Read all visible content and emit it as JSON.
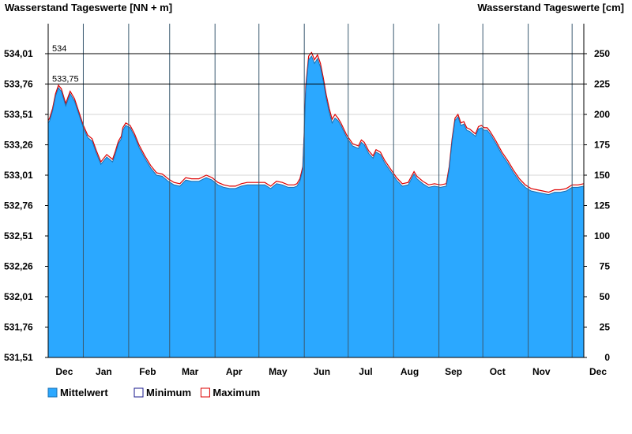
{
  "chart_data": {
    "type": "area",
    "title_left": "Wasserstand Tageswerte [NN + m]",
    "title_right": "Wasserstand Tageswerte [cm]",
    "left_axis": {
      "ticks": [
        "534,01",
        "533,76",
        "533,51",
        "533,26",
        "533,01",
        "532,76",
        "532,51",
        "532,26",
        "532,01",
        "531,76",
        "531,51"
      ],
      "range": [
        531.51,
        534.01
      ]
    },
    "right_axis": {
      "ticks": [
        "250",
        "225",
        "200",
        "175",
        "150",
        "125",
        "100",
        "75",
        "50",
        "25",
        "0"
      ],
      "range": [
        0,
        250
      ]
    },
    "x_axis": {
      "range": [
        0,
        366
      ],
      "month_labels": [
        {
          "label": "Dec",
          "day": 11
        },
        {
          "label": "Jan",
          "day": 38
        },
        {
          "label": "Feb",
          "day": 68
        },
        {
          "label": "Mar",
          "day": 97
        },
        {
          "label": "Apr",
          "day": 127
        },
        {
          "label": "May",
          "day": 157
        },
        {
          "label": "Jun",
          "day": 187
        },
        {
          "label": "Jul",
          "day": 217
        },
        {
          "label": "Aug",
          "day": 247
        },
        {
          "label": "Sep",
          "day": 277
        },
        {
          "label": "Oct",
          "day": 307
        },
        {
          "label": "Nov",
          "day": 337
        },
        {
          "label": "Dec",
          "day": 366
        }
      ],
      "month_boundaries": [
        24,
        55,
        83,
        114,
        144,
        175,
        205,
        236,
        267,
        297,
        328,
        358
      ]
    },
    "reference_lines": [
      {
        "label": "534",
        "value_cm": 250
      },
      {
        "label": "533,75",
        "value_cm": 225
      }
    ],
    "grid": true,
    "legend_position": "bottom-left",
    "legend": [
      {
        "name": "Mittelwert",
        "color": "#2ba8ff"
      },
      {
        "name": "Minimum",
        "color": "#1a1a8c"
      },
      {
        "name": "Maximum",
        "color": "#dd0000"
      }
    ],
    "series": [
      {
        "name": "Mittelwert",
        "unit": "cm",
        "x": [
          0,
          1,
          3,
          5,
          7,
          9,
          10,
          12,
          15,
          18,
          21,
          24,
          27,
          30,
          33,
          36,
          40,
          44,
          46,
          48,
          50,
          51,
          53,
          56,
          59,
          62,
          66,
          70,
          74,
          78,
          82,
          86,
          90,
          94,
          98,
          103,
          108,
          112,
          116,
          120,
          124,
          128,
          132,
          136,
          140,
          144,
          148,
          152,
          156,
          160,
          164,
          168,
          170,
          172,
          174,
          175,
          176,
          178,
          180,
          182,
          184,
          186,
          188,
          190,
          192,
          194,
          196,
          198,
          200,
          204,
          208,
          212,
          214,
          216,
          219,
          222,
          224,
          227,
          230,
          234,
          238,
          242,
          246,
          250,
          252,
          256,
          260,
          264,
          268,
          272,
          274,
          276,
          278,
          280,
          282,
          284,
          286,
          288,
          292,
          294,
          296,
          298,
          300,
          302,
          306,
          310,
          314,
          318,
          322,
          326,
          330,
          334,
          338,
          342,
          346,
          350,
          354,
          358,
          362,
          366
        ],
        "y": [
          193,
          195,
          203,
          215,
          222,
          219,
          215,
          207,
          217,
          211,
          200,
          189,
          181,
          178,
          168,
          159,
          165,
          161,
          168,
          176,
          180,
          187,
          191,
          189,
          182,
          173,
          164,
          156,
          150,
          149,
          145,
          142,
          141,
          146,
          145,
          145,
          148,
          146,
          142,
          140,
          139,
          139,
          141,
          142,
          142,
          142,
          142,
          139,
          143,
          142,
          140,
          140,
          141,
          145,
          155,
          185,
          220,
          245,
          248,
          242,
          246,
          239,
          227,
          213,
          202,
          193,
          197,
          195,
          191,
          181,
          174,
          172,
          177,
          175,
          168,
          164,
          169,
          167,
          160,
          153,
          146,
          141,
          142,
          151,
          147,
          143,
          140,
          141,
          140,
          141,
          155,
          178,
          195,
          198,
          191,
          192,
          187,
          186,
          182,
          188,
          189,
          187,
          187,
          184,
          176,
          167,
          160,
          152,
          145,
          140,
          137,
          136,
          135,
          134,
          136,
          136,
          137,
          140,
          140,
          141
        ]
      },
      {
        "name": "Minimum",
        "unit": "cm",
        "x": [
          0,
          1,
          3,
          5,
          7,
          9,
          10,
          12,
          15,
          18,
          21,
          24,
          27,
          30,
          33,
          36,
          40,
          44,
          46,
          48,
          50,
          51,
          53,
          56,
          59,
          62,
          66,
          70,
          74,
          78,
          82,
          86,
          90,
          94,
          98,
          103,
          108,
          112,
          116,
          120,
          124,
          128,
          132,
          136,
          140,
          144,
          148,
          152,
          156,
          160,
          164,
          168,
          170,
          172,
          174,
          175,
          176,
          178,
          180,
          182,
          184,
          186,
          188,
          190,
          192,
          194,
          196,
          198,
          200,
          204,
          208,
          212,
          214,
          216,
          219,
          222,
          224,
          227,
          230,
          234,
          238,
          242,
          246,
          250,
          252,
          256,
          260,
          264,
          268,
          272,
          274,
          276,
          278,
          280,
          282,
          284,
          286,
          288,
          292,
          294,
          296,
          298,
          300,
          302,
          306,
          310,
          314,
          318,
          322,
          326,
          330,
          334,
          338,
          342,
          346,
          350,
          354,
          358,
          362,
          366
        ],
        "y": [
          191,
          193,
          201,
          213,
          220,
          217,
          213,
          205,
          215,
          209,
          198,
          187,
          179,
          176,
          166,
          157,
          163,
          159,
          166,
          174,
          178,
          185,
          189,
          187,
          180,
          171,
          162,
          154,
          148,
          147,
          143,
          140,
          139,
          144,
          143,
          143,
          146,
          144,
          140,
          138,
          137,
          137,
          139,
          140,
          140,
          140,
          140,
          137,
          141,
          140,
          138,
          138,
          139,
          143,
          153,
          183,
          217,
          242,
          245,
          239,
          243,
          236,
          224,
          210,
          199,
          190,
          194,
          193,
          189,
          179,
          172,
          170,
          175,
          173,
          166,
          162,
          167,
          165,
          158,
          151,
          144,
          139,
          140,
          149,
          145,
          141,
          138,
          139,
          138,
          139,
          153,
          176,
          193,
          196,
          189,
          190,
          185,
          184,
          180,
          186,
          187,
          185,
          185,
          182,
          174,
          165,
          158,
          150,
          143,
          138,
          135,
          134,
          133,
          132,
          134,
          134,
          135,
          138,
          138,
          139
        ]
      },
      {
        "name": "Maximum",
        "unit": "cm",
        "x": [
          0,
          1,
          3,
          5,
          7,
          9,
          10,
          12,
          15,
          18,
          21,
          24,
          27,
          30,
          33,
          36,
          40,
          44,
          46,
          48,
          50,
          51,
          53,
          56,
          59,
          62,
          66,
          70,
          74,
          78,
          82,
          86,
          90,
          94,
          98,
          103,
          108,
          112,
          116,
          120,
          124,
          128,
          132,
          136,
          140,
          144,
          148,
          152,
          156,
          160,
          164,
          168,
          170,
          172,
          174,
          175,
          176,
          178,
          180,
          182,
          184,
          186,
          188,
          190,
          192,
          194,
          196,
          198,
          200,
          204,
          208,
          212,
          214,
          216,
          219,
          222,
          224,
          227,
          230,
          234,
          238,
          242,
          246,
          250,
          252,
          256,
          260,
          264,
          268,
          272,
          274,
          276,
          278,
          280,
          282,
          284,
          286,
          288,
          292,
          294,
          296,
          298,
          300,
          302,
          306,
          310,
          314,
          318,
          322,
          326,
          330,
          334,
          338,
          342,
          346,
          350,
          354,
          358,
          362,
          366
        ],
        "y": [
          195,
          197,
          205,
          217,
          224,
          221,
          217,
          209,
          219,
          213,
          202,
          191,
          183,
          180,
          170,
          161,
          167,
          163,
          170,
          178,
          182,
          189,
          193,
          191,
          184,
          175,
          166,
          158,
          152,
          151,
          147,
          144,
          143,
          148,
          147,
          147,
          150,
          148,
          144,
          142,
          141,
          141,
          143,
          144,
          144,
          144,
          144,
          141,
          145,
          144,
          142,
          142,
          143,
          147,
          157,
          187,
          223,
          248,
          251,
          245,
          249,
          242,
          230,
          216,
          205,
          196,
          200,
          197,
          193,
          183,
          176,
          174,
          179,
          177,
          170,
          166,
          171,
          169,
          162,
          155,
          148,
          143,
          144,
          153,
          149,
          145,
          142,
          143,
          142,
          143,
          157,
          180,
          197,
          200,
          193,
          194,
          189,
          188,
          184,
          190,
          191,
          189,
          189,
          186,
          178,
          169,
          162,
          154,
          147,
          142,
          139,
          138,
          137,
          136,
          138,
          138,
          139,
          142,
          142,
          143
        ]
      }
    ]
  }
}
